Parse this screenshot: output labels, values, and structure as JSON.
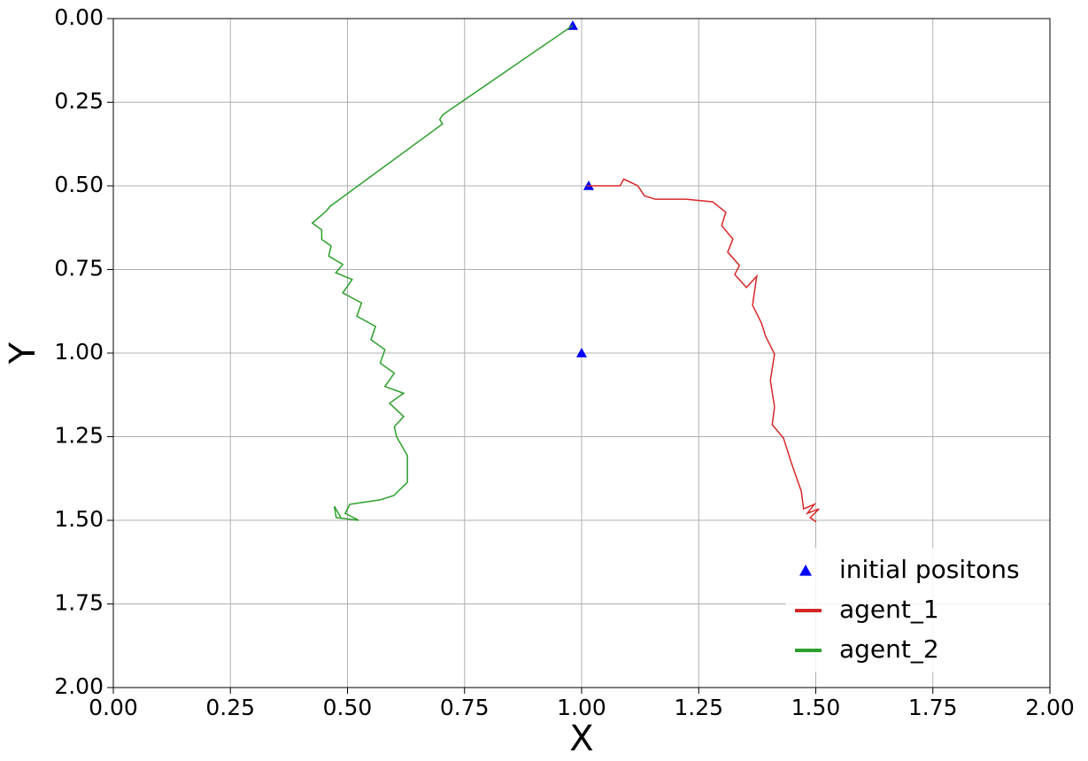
{
  "chart_data": {
    "type": "line",
    "x_label": "X",
    "y_label": "Y",
    "xlim": [
      0,
      2
    ],
    "ylim": [
      2,
      0
    ],
    "xticks": [
      {
        "value": 0,
        "label": "0.00"
      },
      0.25,
      {
        "value": 0.5,
        "label": "0.50"
      },
      0.75,
      {
        "value": 1,
        "label": "1.00"
      },
      1.25,
      {
        "value": 1.5,
        "label": "1.50"
      },
      1.75,
      {
        "value": 2,
        "label": "2.00"
      }
    ],
    "yticks": [
      {
        "value": 0,
        "label": "0.00"
      },
      0.25,
      {
        "value": 0.5,
        "label": "0.50"
      },
      0.75,
      {
        "value": 1,
        "label": "1.00"
      },
      1.25,
      {
        "value": 1.5,
        "label": "1.50"
      },
      1.75,
      {
        "value": 2,
        "label": "2.00"
      }
    ],
    "grid": true,
    "legend": "lower right",
    "series": [
      {
        "name": "initial positons",
        "type": "scatter",
        "marker": "triangle",
        "color": "#0000ff",
        "x": [
          0.981,
          1.015,
          1.0
        ],
        "values": [
          0.021,
          0.5,
          1.0
        ]
      },
      {
        "name": "agent_1",
        "type": "line",
        "color": "#d62728",
        "x": [
          1.011,
          1.082,
          1.09,
          1.12,
          1.134,
          1.157,
          1.223,
          1.28,
          1.308,
          1.299,
          1.323,
          1.312,
          1.337,
          1.327,
          1.352,
          1.374,
          1.365,
          1.384,
          1.393,
          1.412,
          1.403,
          1.412,
          1.407,
          1.431,
          1.446,
          1.459,
          1.469,
          1.474,
          1.497,
          1.482,
          1.507,
          1.488,
          1.501
        ],
        "values": [
          0.5,
          0.5,
          0.48,
          0.5,
          0.53,
          0.54,
          0.54,
          0.548,
          0.579,
          0.619,
          0.659,
          0.698,
          0.738,
          0.765,
          0.804,
          0.77,
          0.857,
          0.91,
          0.95,
          1.003,
          1.082,
          1.161,
          1.214,
          1.254,
          1.32,
          1.373,
          1.413,
          1.466,
          1.452,
          1.479,
          1.466,
          1.492,
          1.505
        ]
      },
      {
        "name": "agent_2",
        "type": "line",
        "color": "#2ca02c",
        "x": [
          0.981,
          0.703,
          0.697,
          0.703,
          0.463,
          0.455,
          0.425,
          0.445,
          0.445,
          0.465,
          0.46,
          0.49,
          0.475,
          0.51,
          0.49,
          0.53,
          0.52,
          0.56,
          0.55,
          0.58,
          0.57,
          0.6,
          0.58,
          0.62,
          0.59,
          0.62,
          0.6,
          0.605,
          0.628,
          0.628,
          0.599,
          0.57,
          0.505,
          0.495,
          0.524,
          0.476,
          0.472,
          0.486
        ],
        "values": [
          0.021,
          0.288,
          0.302,
          0.315,
          0.561,
          0.575,
          0.611,
          0.632,
          0.66,
          0.68,
          0.71,
          0.735,
          0.76,
          0.78,
          0.82,
          0.85,
          0.89,
          0.92,
          0.96,
          0.99,
          1.03,
          1.06,
          1.1,
          1.12,
          1.15,
          1.19,
          1.22,
          1.25,
          1.307,
          1.386,
          1.426,
          1.439,
          1.452,
          1.479,
          1.5,
          1.492,
          1.458,
          1.492
        ]
      }
    ]
  }
}
